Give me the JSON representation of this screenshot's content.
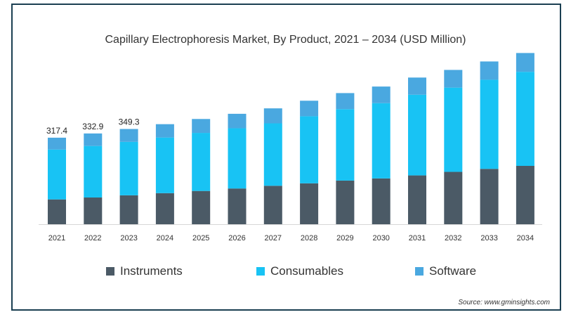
{
  "chart_data": {
    "type": "bar",
    "stacked": true,
    "title": "Capillary Electrophoresis Market, By Product, 2021 – 2034 (USD Million)",
    "categories": [
      "2021",
      "2022",
      "2023",
      "2024",
      "2025",
      "2026",
      "2027",
      "2028",
      "2029",
      "2030",
      "2031",
      "2032",
      "2033",
      "2034"
    ],
    "series": [
      {
        "name": "Instruments",
        "color": "#4b5a66",
        "values": [
          91,
          98,
          106,
          114,
          122,
          131,
          141,
          150,
          160,
          168,
          179,
          192,
          203,
          214
        ]
      },
      {
        "name": "Consumables",
        "color": "#18c3f4",
        "values": [
          183,
          189,
          196,
          204,
          213,
          221,
          229,
          246,
          262,
          276,
          296,
          309,
          327,
          345
        ]
      },
      {
        "name": "Software",
        "color": "#4aa8e0",
        "values": [
          43.4,
          45.9,
          47.3,
          49,
          51,
          53,
          55,
          57,
          59,
          61,
          63,
          65,
          67,
          69
        ]
      }
    ],
    "data_labels": [
      "317.4",
      "332.9",
      "349.3"
    ],
    "ylim": [
      0,
      660
    ],
    "legend_position": "bottom",
    "grid": false
  },
  "source": "Source: www.gminsights.com"
}
